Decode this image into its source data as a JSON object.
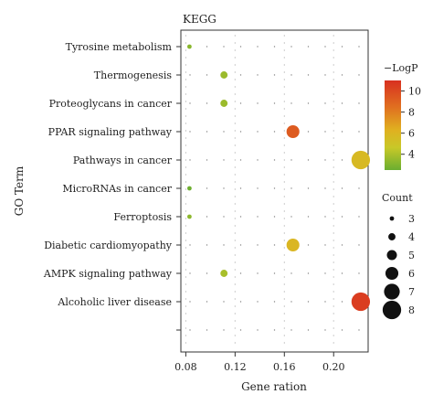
{
  "chart_data": {
    "type": "scatter",
    "title": "KEGG",
    "xlabel": "Gene ration",
    "ylabel": "GO Term",
    "xlim": [
      0.076,
      0.228
    ],
    "x_ticks": [
      "0.08",
      "0.12",
      "0.16",
      "0.20"
    ],
    "x_tick_values": [
      0.08,
      0.12,
      0.16,
      0.2
    ],
    "grid": "dotted",
    "categories": [
      "Tyrosine metabolism",
      "Thermogenesis",
      "Proteoglycans in cancer",
      "PPAR signaling pathway",
      "Pathways in cancer",
      "MicroRNAs in cancer",
      "Ferroptosis",
      "Diabetic cardiomyopathy",
      "AMPK signaling pathway",
      "Alcoholic liver disease"
    ],
    "points": [
      {
        "term": "Tyrosine metabolism",
        "x": 0.083,
        "count": 3,
        "neglogp": 3.2
      },
      {
        "term": "Thermogenesis",
        "x": 0.111,
        "count": 4,
        "neglogp": 3.6
      },
      {
        "term": "Proteoglycans in cancer",
        "x": 0.111,
        "count": 4,
        "neglogp": 3.6
      },
      {
        "term": "PPAR signaling pathway",
        "x": 0.167,
        "count": 6,
        "neglogp": 9.3
      },
      {
        "term": "Pathways in cancer",
        "x": 0.222,
        "count": 8,
        "neglogp": 5.7
      },
      {
        "term": "MicroRNAs in cancer",
        "x": 0.083,
        "count": 3,
        "neglogp": 2.6
      },
      {
        "term": "Ferroptosis",
        "x": 0.083,
        "count": 3,
        "neglogp": 3.3
      },
      {
        "term": "Diabetic cardiomyopathy",
        "x": 0.167,
        "count": 6,
        "neglogp": 5.9
      },
      {
        "term": "AMPK signaling pathway",
        "x": 0.111,
        "count": 4,
        "neglogp": 3.9
      },
      {
        "term": "Alcoholic liver disease",
        "x": 0.222,
        "count": 8,
        "neglogp": 10.5
      }
    ],
    "color_legend": {
      "title": "−LogP",
      "min": 2.5,
      "max": 11,
      "ticks": [
        "10",
        "8",
        "6",
        "4"
      ],
      "tick_values": [
        10,
        8,
        6,
        4
      ],
      "colors": [
        "#d83020",
        "#e07020",
        "#e0b020",
        "#c8c828",
        "#6aae30"
      ]
    },
    "size_legend": {
      "title": "Count",
      "labels": [
        "3",
        "4",
        "5",
        "6",
        "7",
        "8"
      ],
      "values": [
        3,
        4,
        5,
        6,
        7,
        8
      ]
    },
    "legend_placement": "right"
  }
}
